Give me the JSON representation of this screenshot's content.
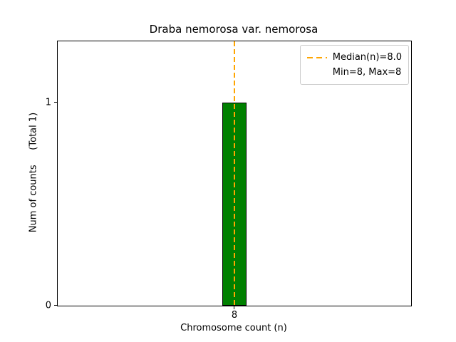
{
  "figure": {
    "background": "#ffffff"
  },
  "chart_data": {
    "type": "bar",
    "title": "Draba nemorosa var. nemorosa",
    "xlabel": "Chromosome count (n)",
    "ylabel": "Num of counts     (Total 1)",
    "categories": [
      8
    ],
    "values": [
      1
    ],
    "x": [
      8
    ],
    "bar_width": 0.1,
    "bar_color": "#008000",
    "bar_edge_color": "#000000",
    "xlim": [
      7.25,
      8.75
    ],
    "ylim": [
      0,
      1.3
    ],
    "xticks": [
      8
    ],
    "yticks": [
      0,
      1
    ],
    "grid": false,
    "median_line": {
      "x": 8,
      "color": "#FFA500",
      "style": "dashed"
    },
    "legend": {
      "position": "upper right",
      "entries": [
        {
          "label": "Median(n)=8.0",
          "sample": "dashed-line",
          "color": "#FFA500"
        },
        {
          "label": "Min=8, Max=8",
          "sample": "none"
        }
      ]
    }
  }
}
